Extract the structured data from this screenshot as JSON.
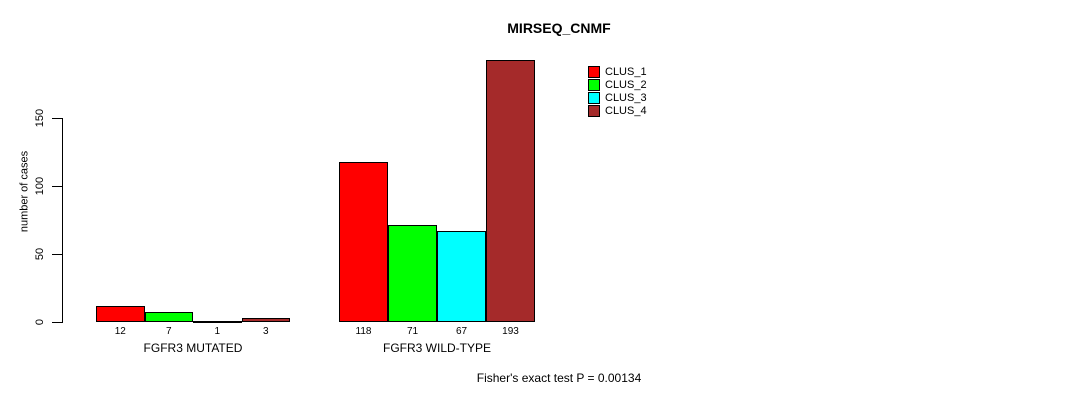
{
  "title": "MIRSEQ_CNMF",
  "footer": "Fisher's exact test P = 0.00134",
  "colors": {
    "clus_1": "#FF0000",
    "clus_2": "#00FF00",
    "clus_3": "#00FFFF",
    "clus_4": "#A52A2A",
    "axis": "#000000"
  },
  "chart_data": {
    "type": "bar",
    "title": "MIRSEQ_CNMF",
    "xlabel": "",
    "ylabel": "number of cases",
    "ylim": [
      0,
      150
    ],
    "yticks": [
      0,
      50,
      100,
      150
    ],
    "ytick_labels_rotated": true,
    "grid": false,
    "legend_position": "top-right",
    "categories": [
      "FGFR3 MUTATED",
      "FGFR3 WILD-TYPE"
    ],
    "series": [
      {
        "name": "CLUS_1",
        "color": "#FF0000",
        "values": [
          12,
          118
        ]
      },
      {
        "name": "CLUS_2",
        "color": "#00FF00",
        "values": [
          7,
          71
        ]
      },
      {
        "name": "CLUS_3",
        "color": "#00FFFF",
        "values": [
          1,
          67
        ]
      },
      {
        "name": "CLUS_4",
        "color": "#A52A2A",
        "values": [
          3,
          193
        ]
      }
    ],
    "bar_value_labels": [
      [
        "12",
        "7",
        "1",
        "3"
      ],
      [
        "118",
        "71",
        "67",
        "193"
      ]
    ],
    "annotation": "Fisher's exact test P = 0.00134"
  }
}
